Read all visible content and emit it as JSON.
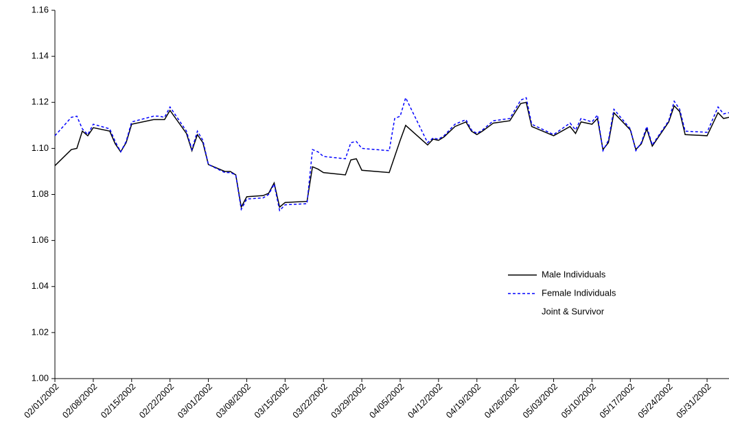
{
  "chart_data": {
    "type": "line",
    "x": [
      "02/01/2002",
      "02/04/2002",
      "02/05/2002",
      "02/06/2002",
      "02/07/2002",
      "02/08/2002",
      "02/11/2002",
      "02/12/2002",
      "02/13/2002",
      "02/14/2002",
      "02/15/2002",
      "02/19/2002",
      "02/20/2002",
      "02/21/2002",
      "02/22/2002",
      "02/25/2002",
      "02/26/2002",
      "02/27/2002",
      "02/28/2002",
      "03/01/2002",
      "03/04/2002",
      "03/05/2002",
      "03/06/2002",
      "03/07/2002",
      "03/08/2002",
      "03/11/2002",
      "03/12/2002",
      "03/13/2002",
      "03/14/2002",
      "03/15/2002",
      "03/19/2002",
      "03/20/2002",
      "03/21/2002",
      "03/22/2002",
      "03/26/2002",
      "03/27/2002",
      "03/28/2002",
      "03/29/2002",
      "04/03/2002",
      "04/04/2002",
      "04/05/2002",
      "04/06/2002",
      "04/10/2002",
      "04/11/2002",
      "04/12/2002",
      "04/13/2002",
      "04/15/2002",
      "04/17/2002",
      "04/18/2002",
      "04/19/2002",
      "04/20/2002",
      "04/22/2002",
      "04/25/2002",
      "04/27/2002",
      "04/28/2002",
      "04/29/2002",
      "05/03/2002",
      "05/06/2002",
      "05/07/2002",
      "05/08/2002",
      "05/10/2002",
      "05/11/2002",
      "05/12/2002",
      "05/13/2002",
      "05/14/2002",
      "05/17/2002",
      "05/18/2002",
      "05/19/2002",
      "05/20/2002",
      "05/21/2002",
      "05/24/2002",
      "05/25/2002",
      "05/26/2002",
      "05/27/2002",
      "05/31/2002",
      "06/02/2002",
      "06/03/2002",
      "06/04/2002"
    ],
    "series": [
      {
        "name": "Male Individuals",
        "color": "#000000",
        "style": "solid",
        "values": [
          1.0925,
          1.0995,
          1.1,
          1.1075,
          1.1055,
          1.109,
          1.1075,
          1.102,
          1.0985,
          1.1025,
          1.1105,
          1.1125,
          1.1125,
          1.1125,
          1.1165,
          1.1065,
          1.099,
          1.106,
          1.1025,
          1.093,
          1.09,
          1.09,
          1.0885,
          1.0745,
          1.079,
          1.0795,
          1.0805,
          1.085,
          1.0745,
          1.0765,
          1.077,
          1.092,
          1.091,
          1.0895,
          1.0885,
          1.095,
          1.0955,
          1.0905,
          1.0895,
          1.0965,
          1.1035,
          1.11,
          1.1015,
          1.104,
          1.1035,
          1.105,
          1.1095,
          1.1115,
          1.1075,
          1.106,
          1.1075,
          1.111,
          1.112,
          1.1195,
          1.12,
          1.1095,
          1.1055,
          1.1095,
          1.1065,
          1.1115,
          1.1105,
          1.113,
          1.0995,
          1.1025,
          1.1155,
          1.108,
          1.0995,
          1.102,
          1.1085,
          1.101,
          1.1115,
          1.1185,
          1.116,
          1.106,
          1.1055,
          1.1155,
          1.113,
          1.1135
        ]
      },
      {
        "name": "Female Individuals",
        "color": "#0000ff",
        "style": "dashed",
        "values": [
          1.1055,
          1.1135,
          1.114,
          1.1085,
          1.106,
          1.1105,
          1.1085,
          1.103,
          1.0985,
          1.103,
          1.1115,
          1.114,
          1.114,
          1.1135,
          1.118,
          1.1075,
          1.0995,
          1.1075,
          1.1035,
          1.093,
          1.0895,
          1.0895,
          1.0885,
          1.0735,
          1.078,
          1.0785,
          1.08,
          1.0845,
          1.073,
          1.0755,
          1.076,
          1.0995,
          1.0985,
          1.0965,
          1.0955,
          1.1025,
          1.103,
          1.1,
          1.099,
          1.113,
          1.114,
          1.122,
          1.1025,
          1.1045,
          1.104,
          1.1055,
          1.1105,
          1.1125,
          1.108,
          1.1065,
          1.108,
          1.112,
          1.113,
          1.121,
          1.122,
          1.1105,
          1.106,
          1.111,
          1.108,
          1.113,
          1.1115,
          1.1145,
          1.099,
          1.1035,
          1.117,
          1.1085,
          1.099,
          1.1025,
          1.1095,
          1.1015,
          1.112,
          1.1205,
          1.117,
          1.1075,
          1.107,
          1.118,
          1.115,
          1.1155
        ]
      },
      {
        "name": "Joint & Survivor",
        "color": "#ffffff",
        "style": "solid",
        "values": [
          null,
          null,
          null,
          null,
          null,
          null,
          null,
          null,
          null,
          null,
          null,
          null,
          null,
          null,
          null,
          null,
          null,
          null,
          null,
          null,
          null,
          null,
          null,
          null,
          null,
          null,
          null,
          null,
          null,
          null,
          null,
          null,
          null,
          null,
          null,
          null,
          null,
          null,
          null,
          null,
          null,
          null,
          null,
          null,
          null,
          null,
          null,
          null,
          null,
          null,
          null,
          null,
          null,
          null,
          null,
          null,
          null,
          null,
          null,
          null,
          null,
          null,
          null,
          null,
          null,
          null,
          null,
          null,
          null,
          null,
          null,
          null,
          null,
          null,
          null,
          null,
          null,
          null
        ]
      }
    ],
    "xlim": [
      "02/01/2002",
      "06/04/2002"
    ],
    "xticks": [
      "02/01/2002",
      "02/08/2002",
      "02/15/2002",
      "02/22/2002",
      "03/01/2002",
      "03/08/2002",
      "03/15/2002",
      "03/22/2002",
      "03/29/2002",
      "04/05/2002",
      "04/12/2002",
      "04/19/2002",
      "04/26/2002",
      "05/03/2002",
      "05/10/2002",
      "05/17/2002",
      "05/24/2002",
      "05/31/2002"
    ],
    "ylim": [
      1.0,
      1.16
    ],
    "yticks": [
      {
        "value": 1.0,
        "label": "1.00"
      },
      1.02,
      1.04,
      1.06,
      1.08,
      {
        "value": 1.1,
        "label": "1.10"
      },
      1.12,
      1.14,
      1.16
    ],
    "grid": false,
    "legend": "lower-right"
  }
}
